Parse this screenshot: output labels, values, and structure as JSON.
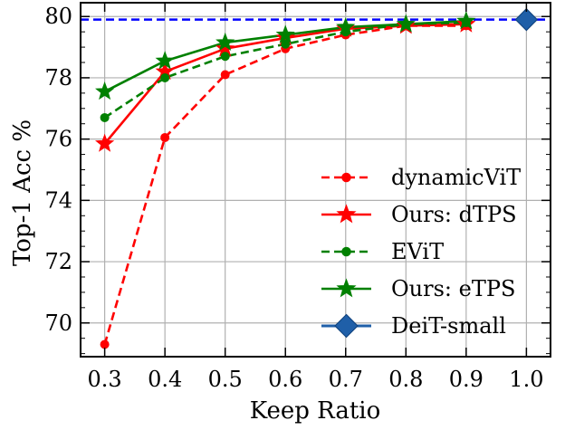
{
  "chart_data": {
    "type": "line",
    "title": "",
    "xlabel": "Keep Ratio",
    "ylabel": "Top-1 Acc %",
    "xlim": [
      0.26,
      1.04
    ],
    "ylim": [
      68.9,
      80.45
    ],
    "x_ticks": [
      "0.3",
      "0.4",
      "0.5",
      "0.6",
      "0.7",
      "0.8",
      "0.9",
      "1.0"
    ],
    "y_ticks": [
      "70",
      "72",
      "74",
      "76",
      "78",
      "80"
    ],
    "grid": true,
    "legend_position": "lower-right",
    "reference_line": {
      "series": "DeiT-small",
      "y": 79.9,
      "color": "#0000ff",
      "style": "dashed"
    },
    "series": [
      {
        "name": "dynamicViT",
        "color": "#ff0000",
        "line": "dashed",
        "marker": "circle",
        "x": [
          0.3,
          0.4,
          0.5,
          0.6,
          0.7,
          0.8,
          0.9
        ],
        "y": [
          69.3,
          76.05,
          78.1,
          78.95,
          79.4,
          79.7,
          79.7
        ]
      },
      {
        "name": "Ours: dTPS",
        "color": "#ff0000",
        "line": "solid",
        "marker": "star",
        "x": [
          0.3,
          0.4,
          0.5,
          0.6,
          0.7,
          0.8,
          0.9
        ],
        "y": [
          75.85,
          78.2,
          78.95,
          79.3,
          79.6,
          79.7,
          79.75
        ]
      },
      {
        "name": "EViT",
        "color": "#008000",
        "line": "dashed",
        "marker": "circle",
        "x": [
          0.3,
          0.4,
          0.5,
          0.6,
          0.7,
          0.8,
          0.9
        ],
        "y": [
          76.7,
          78.0,
          78.7,
          79.1,
          79.5,
          79.75,
          79.8
        ]
      },
      {
        "name": "Ours: eTPS",
        "color": "#008000",
        "line": "solid",
        "marker": "star",
        "x": [
          0.3,
          0.4,
          0.5,
          0.6,
          0.7,
          0.8,
          0.9
        ],
        "y": [
          77.55,
          78.55,
          79.15,
          79.4,
          79.65,
          79.75,
          79.85
        ]
      },
      {
        "name": "DeiT-small",
        "color": "#1f5fa8",
        "line": "solid",
        "marker": "diamond",
        "x": [
          1.0
        ],
        "y": [
          79.9
        ]
      }
    ]
  }
}
